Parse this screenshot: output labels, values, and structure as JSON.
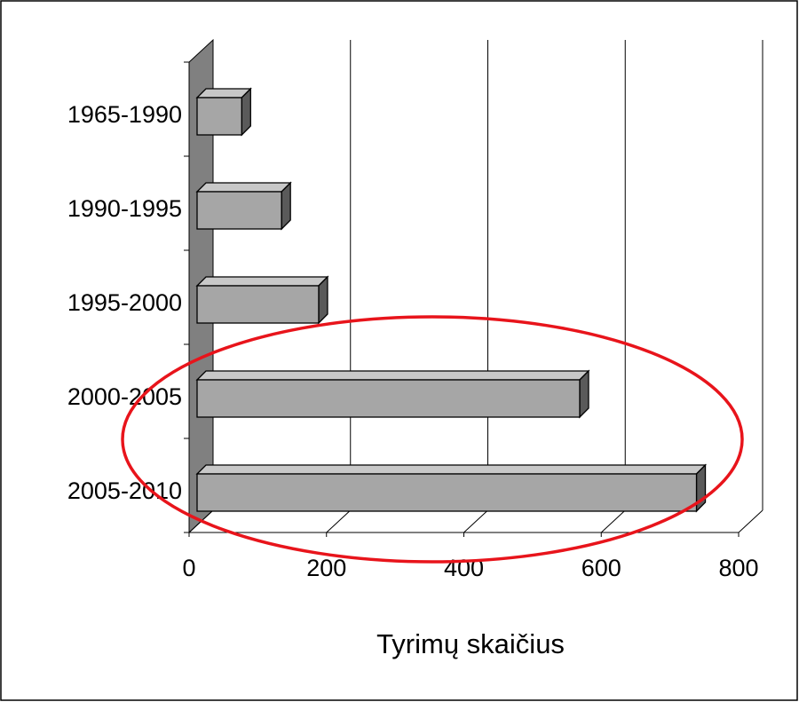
{
  "chart_data": {
    "type": "bar",
    "orientation": "horizontal",
    "three_d": true,
    "x_axis_label": "Tyrimų skaičius",
    "categories": [
      "1965-1990",
      "1990-1995",
      "1995-2000",
      "2000-2005",
      "2005-2010"
    ],
    "values": [
      65,
      123,
      177,
      557,
      727
    ],
    "color": "#a6a6a6",
    "xlim": [
      0,
      800
    ],
    "xticks": [
      0,
      200,
      400,
      600,
      800
    ],
    "grid": true
  }
}
